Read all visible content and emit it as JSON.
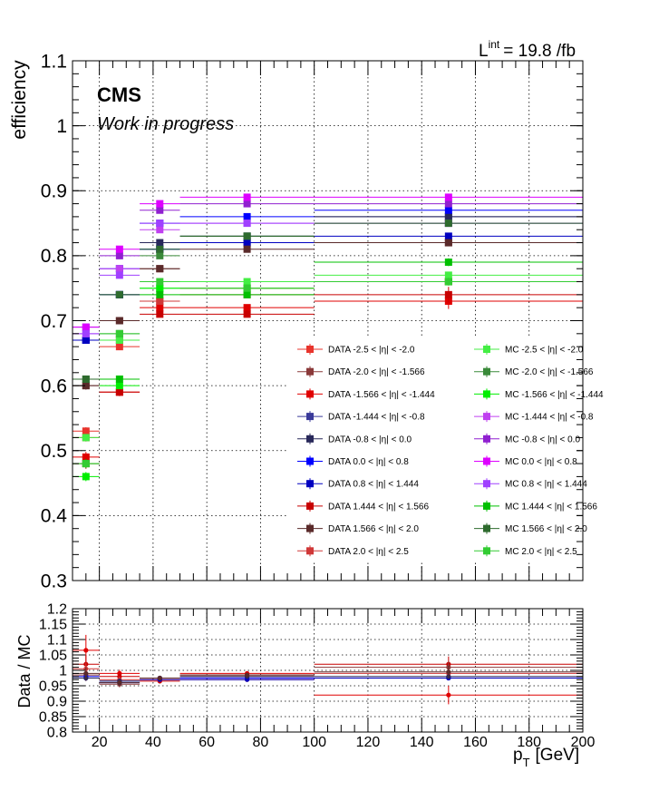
{
  "lumi_label": "L",
  "lumi_sup": "int",
  "lumi_value": "= 19.8 /fb",
  "cms_label": "CMS",
  "wip_label": "Work in progress",
  "chart_data": [
    {
      "type": "scatter",
      "ylabel": "efficiency",
      "xlim": [
        10,
        200
      ],
      "ylim": [
        0.3,
        1.1
      ],
      "grid": true,
      "yticks": [
        "0.3",
        "0.4",
        "0.5",
        "0.6",
        "0.7",
        "0.8",
        "0.9",
        "1",
        "1.1"
      ],
      "yticks_values": [
        0.3,
        0.4,
        0.5,
        0.6,
        0.7,
        0.8,
        0.9,
        1.0,
        1.1
      ],
      "x_bin_edges": [
        10,
        20,
        35,
        50,
        100,
        200
      ],
      "x": [
        15,
        27.5,
        42.5,
        75,
        150
      ],
      "legend_position": "bottom-right",
      "series": [
        {
          "name": "DATA -2.5 < |η| < -2.0",
          "color": "#e8342c",
          "values": [
            0.53,
            0.66,
            0.73,
            0.75,
            0.76
          ],
          "err": [
            0.006,
            0.004,
            0.003,
            0.002,
            0.004
          ]
        },
        {
          "name": "DATA -2.0 < |η| < -1.566",
          "color": "#8b3a3a",
          "values": [
            0.6,
            0.7,
            0.78,
            0.82,
            0.82
          ],
          "err": [
            0.006,
            0.004,
            0.003,
            0.002,
            0.004
          ]
        },
        {
          "name": "DATA -1.566 < |η| < -1.444",
          "color": "#e00000",
          "values": [
            0.49,
            0.59,
            0.72,
            0.72,
            0.73
          ],
          "err": [
            0.008,
            0.006,
            0.004,
            0.003,
            0.012
          ]
        },
        {
          "name": "DATA -1.444 < |η| < -0.8",
          "color": "#3a3a9a",
          "values": [
            0.67,
            0.74,
            0.81,
            0.83,
            0.86
          ],
          "err": [
            0.004,
            0.003,
            0.002,
            0.002,
            0.003
          ]
        },
        {
          "name": "DATA -0.8 < |η| < 0.0",
          "color": "#28285a",
          "values": [
            0.67,
            0.74,
            0.82,
            0.83,
            0.86
          ],
          "err": [
            0.004,
            0.003,
            0.002,
            0.002,
            0.003
          ]
        },
        {
          "name": "DATA 0.0 < |η| < 0.8",
          "color": "#0000ff",
          "values": [
            0.67,
            0.78,
            0.85,
            0.86,
            0.87
          ],
          "err": [
            0.004,
            0.003,
            0.002,
            0.002,
            0.003
          ]
        },
        {
          "name": "DATA 0.8 < |η| < 1.444",
          "color": "#0000c0",
          "values": [
            0.67,
            0.74,
            0.81,
            0.82,
            0.83
          ],
          "err": [
            0.004,
            0.003,
            0.002,
            0.002,
            0.003
          ]
        },
        {
          "name": "DATA 1.444 < |η| < 1.566",
          "color": "#c80000",
          "values": [
            0.48,
            0.59,
            0.71,
            0.71,
            0.74
          ],
          "err": [
            0.008,
            0.006,
            0.004,
            0.003,
            0.012
          ]
        },
        {
          "name": "DATA 1.566 < |η| < 2.0",
          "color": "#5a2a2a",
          "values": [
            0.6,
            0.7,
            0.78,
            0.81,
            0.82
          ],
          "err": [
            0.006,
            0.004,
            0.003,
            0.002,
            0.004
          ]
        },
        {
          "name": "DATA 2.0 < |η| < 2.5",
          "color": "#d03838",
          "values": [
            0.52,
            0.67,
            0.73,
            0.74,
            0.76
          ],
          "err": [
            0.006,
            0.004,
            0.003,
            0.002,
            0.004
          ]
        },
        {
          "name": "MC -2.5 < |η| < -2.0",
          "color": "#44ee44",
          "values": [
            0.52,
            0.67,
            0.75,
            0.76,
            0.77
          ],
          "err": [
            0.005,
            0.003,
            0.002,
            0.002,
            0.003
          ]
        },
        {
          "name": "MC -2.0 < |η| < -1.566",
          "color": "#3a8a3a",
          "values": [
            0.61,
            0.68,
            0.8,
            0.83,
            0.85
          ],
          "err": [
            0.005,
            0.003,
            0.002,
            0.002,
            0.003
          ]
        },
        {
          "name": "MC -1.566 < |η| < -1.444",
          "color": "#00ee00",
          "values": [
            0.46,
            0.6,
            0.75,
            0.75,
            0.76
          ],
          "err": [
            0.007,
            0.005,
            0.003,
            0.002,
            0.006
          ]
        },
        {
          "name": "MC -1.444 < |η| < -0.8",
          "color": "#c040f0",
          "values": [
            0.68,
            0.78,
            0.84,
            0.85,
            0.85
          ],
          "err": [
            0.004,
            0.003,
            0.002,
            0.002,
            0.003
          ]
        },
        {
          "name": "MC -0.8 < |η| < 0.0",
          "color": "#9020d0",
          "values": [
            0.69,
            0.8,
            0.87,
            0.88,
            0.88
          ],
          "err": [
            0.004,
            0.003,
            0.002,
            0.002,
            0.003
          ]
        },
        {
          "name": "MC 0.0 < |η| < 0.8",
          "color": "#dd00ff",
          "values": [
            0.69,
            0.81,
            0.88,
            0.89,
            0.89
          ],
          "err": [
            0.004,
            0.003,
            0.002,
            0.002,
            0.003
          ]
        },
        {
          "name": "MC 0.8 < |η| < 1.444",
          "color": "#a040ff",
          "values": [
            0.68,
            0.77,
            0.85,
            0.85,
            0.85
          ],
          "err": [
            0.004,
            0.003,
            0.002,
            0.002,
            0.003
          ]
        },
        {
          "name": "MC 1.444 < |η| < 1.566",
          "color": "#00c000",
          "values": [
            0.48,
            0.61,
            0.74,
            0.74,
            0.79
          ],
          "err": [
            0.007,
            0.005,
            0.003,
            0.002,
            0.006
          ]
        },
        {
          "name": "MC 1.566 < |η| < 2.0",
          "color": "#2e6b2e",
          "values": [
            0.61,
            0.74,
            0.81,
            0.83,
            0.85
          ],
          "err": [
            0.005,
            0.003,
            0.002,
            0.002,
            0.003
          ]
        },
        {
          "name": "MC 2.0 < |η| < 2.5",
          "color": "#33cc33",
          "values": [
            0.48,
            0.68,
            0.76,
            0.75,
            0.76
          ],
          "err": [
            0.005,
            0.003,
            0.002,
            0.002,
            0.003
          ]
        }
      ]
    },
    {
      "type": "scatter",
      "xlabel": "p",
      "xlabel_sub": "T",
      "xlabel_unit": "[GeV]",
      "ylabel": "Data / MC",
      "xlim": [
        10,
        200
      ],
      "ylim": [
        0.8,
        1.2
      ],
      "grid": true,
      "xticks": [
        "20",
        "40",
        "60",
        "80",
        "100",
        "120",
        "140",
        "160",
        "180",
        "200"
      ],
      "xticks_values": [
        20,
        40,
        60,
        80,
        100,
        120,
        140,
        160,
        180,
        200
      ],
      "yticks": [
        "0.8",
        "0.85",
        "0.9",
        "0.95",
        "1",
        "1.05",
        "1.1",
        "1.15",
        "1.2"
      ],
      "yticks_values": [
        0.8,
        0.85,
        0.9,
        0.95,
        1.0,
        1.05,
        1.1,
        1.15,
        1.2
      ],
      "x_bin_edges": [
        10,
        20,
        35,
        50,
        100,
        200
      ],
      "x": [
        15,
        27.5,
        42.5,
        75,
        150
      ],
      "series": [
        {
          "color": "#e00000",
          "values": [
            1.065,
            0.99,
            0.97,
            0.99,
            0.92
          ],
          "err": [
            0.05,
            0.012,
            0.008,
            0.005,
            0.03
          ]
        },
        {
          "color": "#c80000",
          "values": [
            1.02,
            0.98,
            0.965,
            0.985,
            1.02
          ],
          "err": [
            0.03,
            0.01,
            0.007,
            0.005,
            0.025
          ]
        },
        {
          "color": "#8b3a3a",
          "values": [
            0.985,
            0.955,
            0.975,
            0.98,
            1.01
          ],
          "err": [
            0.02,
            0.01,
            0.007,
            0.005,
            0.02
          ]
        },
        {
          "color": "#d03838",
          "values": [
            1.005,
            0.97,
            0.97,
            0.97,
            0.99
          ],
          "err": [
            0.02,
            0.01,
            0.007,
            0.005,
            0.02
          ]
        },
        {
          "color": "#0000ff",
          "values": [
            0.98,
            0.965,
            0.975,
            0.975,
            0.975
          ],
          "err": [
            0.008,
            0.006,
            0.004,
            0.003,
            0.006
          ]
        },
        {
          "color": "#0000c0",
          "values": [
            0.975,
            0.96,
            0.97,
            0.97,
            0.975
          ],
          "err": [
            0.008,
            0.006,
            0.004,
            0.003,
            0.006
          ]
        },
        {
          "color": "#28285a",
          "values": [
            0.975,
            0.965,
            0.975,
            0.98,
            0.98
          ],
          "err": [
            0.008,
            0.006,
            0.004,
            0.003,
            0.006
          ]
        },
        {
          "color": "#5a2a2a",
          "values": [
            0.99,
            0.96,
            0.975,
            0.985,
            0.995
          ],
          "err": [
            0.02,
            0.01,
            0.007,
            0.005,
            0.02
          ]
        }
      ]
    }
  ]
}
